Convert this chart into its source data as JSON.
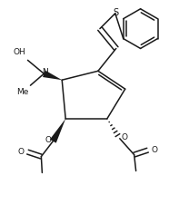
{
  "background_color": "#ffffff",
  "line_color": "#1a1a1a",
  "lw": 1.1,
  "fig_width": 1.97,
  "fig_height": 2.36,
  "dpi": 100,
  "xlim": [
    0,
    197
  ],
  "ylim": [
    0,
    236
  ]
}
